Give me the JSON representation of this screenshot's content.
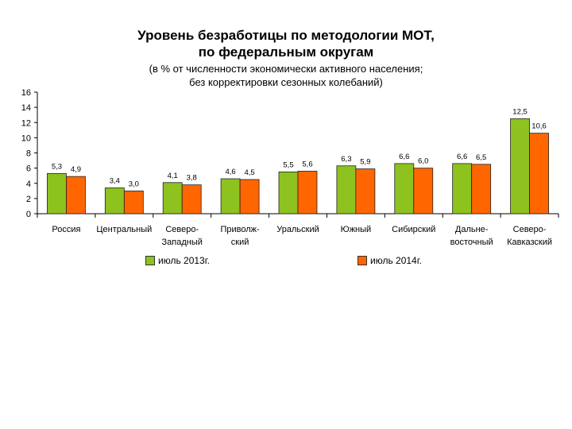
{
  "chart_data": {
    "type": "bar",
    "title_lines": [
      "Уровень безработицы по методологии МОТ,",
      "по федеральным округам"
    ],
    "subtitle_lines": [
      "(в % от численности экономически активного населения;",
      "без корректировки сезонных колебаний)"
    ],
    "categories": [
      [
        "Россия"
      ],
      [
        "Центральный"
      ],
      [
        "Северо-",
        "Западный"
      ],
      [
        "Приволж-",
        "ский"
      ],
      [
        "Уральский"
      ],
      [
        "Южный"
      ],
      [
        "Сибирский"
      ],
      [
        "Дальне-",
        "восточный"
      ],
      [
        "Северо-",
        "Кавказский"
      ]
    ],
    "series": [
      {
        "name": "июль 2013г.",
        "color": "#8dc21f",
        "values": [
          5.3,
          3.4,
          4.1,
          4.6,
          5.5,
          6.3,
          6.6,
          6.6,
          12.5
        ],
        "labels": [
          "5,3",
          "3,4",
          "4,1",
          "4,6",
          "5,5",
          "6,3",
          "6,6",
          "6,6",
          "12,5"
        ]
      },
      {
        "name": "июль 2014г.",
        "color": "#ff6600",
        "values": [
          4.9,
          3.0,
          3.8,
          4.5,
          5.6,
          5.9,
          6.0,
          6.5,
          10.6
        ],
        "labels": [
          "4,9",
          "3,0",
          "3,8",
          "4,5",
          "5,6",
          "5,9",
          "6,0",
          "6,5",
          "10,6"
        ]
      }
    ],
    "ylim": [
      0,
      16
    ],
    "yticks": [
      "0",
      "2",
      "4",
      "6",
      "8",
      "10",
      "12",
      "14",
      "16"
    ],
    "grid": false,
    "legend_position": "bottom"
  }
}
